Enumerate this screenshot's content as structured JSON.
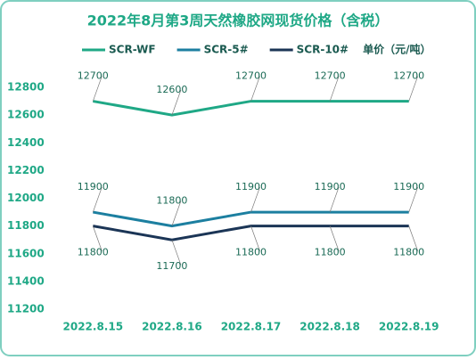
{
  "chart_data": {
    "type": "line",
    "title": "2022年8月第3周天然橡胶网现货价格（含税）",
    "y_label": "单价（元/吨）",
    "categories": [
      "2022.8.15",
      "2022.8.16",
      "2022.8.17",
      "2022.8.18",
      "2022.8.19"
    ],
    "series": [
      {
        "name": "SCR-WF",
        "color": "#1fa886",
        "values": [
          12700,
          12600,
          12700,
          12700,
          12700
        ]
      },
      {
        "name": "SCR-5#",
        "color": "#1c7fa0",
        "values": [
          11900,
          11800,
          11900,
          11900,
          11900
        ]
      },
      {
        "name": "SCR-10#",
        "color": "#1b3556",
        "values": [
          11800,
          11700,
          11800,
          11800,
          11800
        ]
      }
    ],
    "ylim": [
      11200,
      12800
    ],
    "yticks": [
      11200,
      11400,
      11600,
      11800,
      12000,
      12200,
      12400,
      12600,
      12800
    ]
  }
}
